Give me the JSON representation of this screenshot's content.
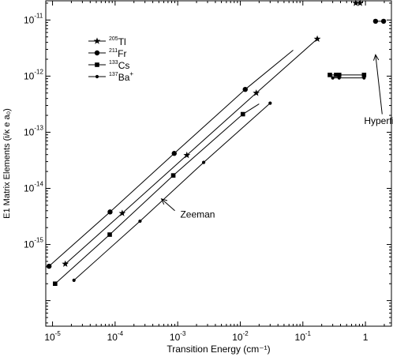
{
  "chart_data": {
    "type": "scatter",
    "xlabel": "Transition Energy (cm⁻¹)",
    "ylabel": "E1 Matrix Elements (i/κ e a₀)",
    "x_scale": "log",
    "y_scale": "log",
    "xlim": [
      7.8e-06,
      2.6
    ],
    "ylim": [
      3.5e-17,
      2.2e-11
    ],
    "grid": false,
    "legend_position": "top-left",
    "x_ticks": [
      {
        "value": 1e-05,
        "base": "10",
        "exp": "-5"
      },
      {
        "value": 0.0001,
        "base": "10",
        "exp": "-4"
      },
      {
        "value": 0.001,
        "base": "10",
        "exp": "-3"
      },
      {
        "value": 0.01,
        "base": "10",
        "exp": "-2"
      },
      {
        "value": 0.1,
        "base": "10",
        "exp": "-1"
      },
      {
        "value": 1,
        "base": "1",
        "exp": ""
      }
    ],
    "y_ticks": [
      {
        "value": 1e-11,
        "base": "10",
        "exp": "-11"
      },
      {
        "value": 1e-12,
        "base": "10",
        "exp": "-12"
      },
      {
        "value": 1e-13,
        "base": "10",
        "exp": "-13"
      },
      {
        "value": 1e-14,
        "base": "10",
        "exp": "-14"
      },
      {
        "value": 1e-15,
        "base": "10",
        "exp": "-15"
      }
    ],
    "series": [
      {
        "name": "205Tl",
        "mass": "205",
        "symbol": "Tl",
        "marker": "star",
        "zeeman_points": [
          [
            1.6e-05,
            4.5e-16
          ],
          [
            0.00013,
            3.6e-15
          ],
          [
            0.0014,
            3.9e-14
          ],
          [
            0.018,
            5e-13
          ],
          [
            0.17,
            4.6e-12
          ]
        ],
        "hyperfine_points": [
          [
            0.7,
            2e-11
          ],
          [
            0.82,
            2e-11
          ]
        ]
      },
      {
        "name": "211Fr",
        "mass": "211",
        "symbol": "Fr",
        "marker": "circle",
        "zeeman_points": [
          [
            8.8e-06,
            4.1e-16
          ],
          [
            8.3e-05,
            3.8e-15
          ],
          [
            0.00088,
            4.2e-14
          ],
          [
            0.012,
            5.8e-13
          ]
        ],
        "zeeman_line_end": [
          0.07,
          2.9e-12
        ],
        "hyperfine_points": [
          [
            1.45,
            9.5e-12
          ],
          [
            1.95,
            9.5e-12
          ]
        ]
      },
      {
        "name": "133Cs",
        "mass": "133",
        "symbol": "Cs",
        "marker": "square",
        "zeeman_points": [
          [
            1.1e-05,
            2e-16
          ],
          [
            8.2e-05,
            1.5e-15
          ],
          [
            0.00085,
            1.7e-14
          ],
          [
            0.011,
            2.1e-13
          ]
        ],
        "zeeman_line_end": [
          0.02,
          3.2e-13
        ],
        "hyperfine_points": [
          [
            0.27,
            1.05e-12
          ],
          [
            0.34,
            1.05e-12
          ],
          [
            0.38,
            1.05e-12
          ],
          [
            0.95,
            1.05e-12
          ]
        ]
      },
      {
        "name": "137Ba+",
        "mass": "137",
        "symbol": "Ba",
        "charge": "+",
        "marker": "small-circle",
        "zeeman_points": [
          [
            2.2e-05,
            2.3e-16
          ],
          [
            0.00025,
            2.6e-15
          ],
          [
            0.0026,
            2.9e-14
          ],
          [
            0.03,
            3.3e-13
          ]
        ],
        "hyperfine_points": [
          [
            0.3,
            9.3e-13
          ],
          [
            0.38,
            9.3e-13
          ],
          [
            0.95,
            9.3e-13
          ]
        ]
      }
    ],
    "annotations": [
      {
        "text": "Zeeman",
        "text_at": [
          0.0011,
          3e-15
        ],
        "arrow_from": [
          0.0009,
          4e-15
        ],
        "arrow_to": [
          0.00055,
          6.5e-15
        ]
      },
      {
        "text": "Hyperfine",
        "text_at": [
          0.95,
          1.4e-13
        ],
        "arrow_from": [
          1.85,
          2.1e-13
        ],
        "arrow_to": [
          1.45,
          2.4e-12
        ]
      }
    ]
  }
}
